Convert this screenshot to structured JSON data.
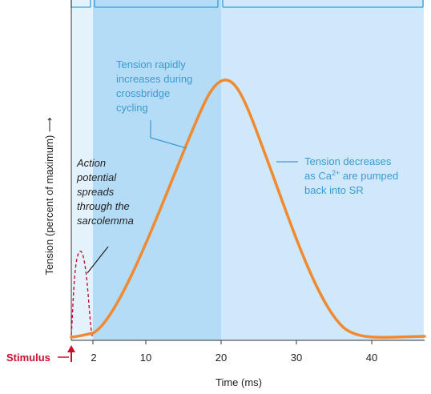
{
  "figure": {
    "y_axis_title": "Tension (percent of maximum) ⟶",
    "x_axis_title": "Time (ms)",
    "x_ticks": [
      "2",
      "10",
      "20",
      "30",
      "40"
    ],
    "stimulus_label": "Stimulus",
    "annotation_rise": [
      "Tension rapidly",
      "increases during",
      "crossbridge",
      "cycling"
    ],
    "annotation_fall": {
      "line1": "Tension decreases",
      "line2_prefix": "as Ca",
      "line2_sup": "2+",
      "line2_suffix": " are pumped",
      "line3": "back into SR"
    },
    "annotation_ap": [
      "Action",
      "potential",
      "spreads",
      "through the",
      "sarcolemma"
    ],
    "colors": {
      "latent_phase": "#e4f2fc",
      "contraction_phase": "#b4dcf6",
      "relaxation_phase": "#cfe8fa",
      "tension_curve": "#ef8a33",
      "action_potential": "#c8102e",
      "annotation_text": "#3a9bd1"
    }
  }
}
